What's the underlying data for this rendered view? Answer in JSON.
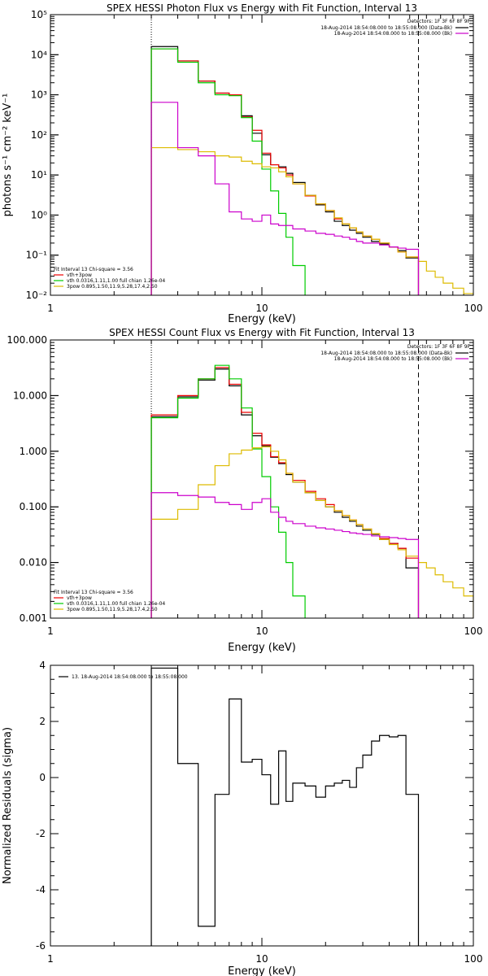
{
  "chart_data": [
    {
      "type": "line",
      "title": "SPEX HESSI Photon Flux vs Energy with Fit Function, Interval 13",
      "xlabel": "Energy (keV)",
      "ylabel": "photons s⁻¹ cm⁻² keV⁻¹",
      "xscale": "log",
      "yscale": "log",
      "xlim": [
        1,
        100
      ],
      "ylim": [
        0.01,
        100000
      ],
      "xticks": [
        "1",
        "10",
        "100"
      ],
      "yticks": [
        "10⁻²",
        "10⁻¹",
        "10⁰",
        "10¹",
        "10²",
        "10³",
        "10⁴",
        "10⁵"
      ],
      "legend_topright": {
        "detectors": "Detectors: 1F 3F 6F 8F 9F",
        "lines": [
          {
            "text": "18-Aug-2014 18:54:08.000 to 18:55:08.000 (Data-Bk)",
            "color": "#000000"
          },
          {
            "text": "18-Aug-2014 18:54:08.000 to 18:55:08.000 (Bk)",
            "color": "#cc00cc"
          }
        ]
      },
      "legend_bottomleft": {
        "header": "Fit Interval 13   Chi-square = 3.56",
        "entries": [
          {
            "text": "vth+3pow",
            "color": "#ee0000"
          },
          {
            "text": "vth 0.0316,1.11,1.00  full chian 1.26e-04",
            "color": "#00cc00"
          },
          {
            "text": "3pow 0.895,1.50,11.9,5.28,17.4,2.50",
            "color": "#ddbb00"
          }
        ]
      },
      "vlines": [
        {
          "x": 3,
          "style": "dotted"
        },
        {
          "x": 55,
          "style": "dashed"
        }
      ],
      "series": [
        {
          "color": "#000000",
          "edges": [
            3,
            4,
            5,
            6,
            7,
            8,
            9,
            10,
            11,
            12,
            13,
            14,
            16,
            18,
            20,
            22,
            24,
            26,
            28,
            30,
            33,
            36,
            40,
            44,
            48,
            55
          ],
          "values": [
            16000,
            7000,
            2200,
            1100,
            1000,
            300,
            110,
            32,
            18,
            16,
            11,
            6.5,
            3.1,
            1.8,
            1.2,
            0.7,
            0.55,
            0.42,
            0.35,
            0.28,
            0.22,
            0.19,
            0.16,
            0.13,
            0.085
          ]
        },
        {
          "color": "#ee0000",
          "edges": [
            3,
            4,
            5,
            6,
            7,
            8,
            9,
            10,
            11,
            12,
            13,
            14,
            16,
            18,
            20,
            22,
            24,
            26,
            28,
            30,
            33,
            36,
            40,
            44,
            48,
            55
          ],
          "values": [
            14000,
            7000,
            2200,
            1100,
            1000,
            280,
            130,
            35,
            18,
            15,
            10,
            6,
            3,
            1.9,
            1.3,
            0.8,
            0.6,
            0.48,
            0.38,
            0.3,
            0.25,
            0.2,
            0.16,
            0.12,
            0.09
          ]
        },
        {
          "color": "#00cc00",
          "edges": [
            3,
            4,
            5,
            6,
            7,
            8,
            9,
            10,
            11,
            12,
            13,
            14,
            16
          ],
          "values": [
            14000,
            6500,
            2000,
            1000,
            950,
            270,
            70,
            14,
            4,
            1.1,
            0.28,
            0.055
          ]
        },
        {
          "color": "#ddbb00",
          "edges": [
            3,
            4,
            5,
            6,
            7,
            8,
            9,
            10,
            11,
            12,
            13,
            14,
            16,
            18,
            20,
            22,
            24,
            26,
            28,
            30,
            33,
            36,
            40,
            44,
            48,
            55,
            60,
            66,
            72,
            80,
            90,
            100
          ],
          "values": [
            48,
            43,
            38,
            30,
            28,
            22,
            19,
            16,
            15,
            12,
            9,
            6,
            3.1,
            1.9,
            1.3,
            0.85,
            0.6,
            0.48,
            0.38,
            0.3,
            0.25,
            0.2,
            0.16,
            0.12,
            0.09,
            0.07,
            0.04,
            0.028,
            0.02,
            0.015,
            0.011
          ]
        },
        {
          "color": "#cc00cc",
          "edges": [
            3,
            4,
            5,
            6,
            7,
            8,
            9,
            10,
            11,
            12,
            13,
            14,
            16,
            18,
            20,
            22,
            24,
            26,
            28,
            30,
            33,
            36,
            40,
            44,
            48,
            55
          ],
          "values": [
            650,
            48,
            30,
            6,
            1.2,
            0.8,
            0.7,
            1.0,
            0.6,
            0.55,
            0.55,
            0.45,
            0.4,
            0.35,
            0.33,
            0.3,
            0.28,
            0.25,
            0.22,
            0.2,
            0.2,
            0.18,
            0.16,
            0.15,
            0.14
          ]
        }
      ]
    },
    {
      "type": "line",
      "title": "SPEX HESSI Count Flux vs Energy with Fit Function, Interval 13",
      "xlabel": "Energy (keV)",
      "ylabel": "",
      "xscale": "log",
      "yscale": "log",
      "xlim": [
        1,
        100
      ],
      "ylim": [
        0.001,
        100
      ],
      "xticks": [
        "1",
        "10",
        "100"
      ],
      "yticks": [
        "0.001",
        "0.010",
        "0.100",
        "1.000",
        "10.000",
        "100.000"
      ],
      "legend_topright": {
        "detectors": "Detectors: 1F 3F 6F 8F 9F",
        "lines": [
          {
            "text": "18-Aug-2014 18:54:08.000 to 18:55:08.000 (Data-Bk)",
            "color": "#000000"
          },
          {
            "text": "18-Aug-2014 18:54:08.000 to 18:55:08.000 (Bk)",
            "color": "#cc00cc"
          }
        ]
      },
      "legend_bottomleft": {
        "header": "Fit Interval 13   Chi-square = 3.56",
        "entries": [
          {
            "text": "vth+3pow",
            "color": "#ee0000"
          },
          {
            "text": "vth 0.0316,1.11,1.00  full chian 1.26e-04",
            "color": "#00cc00"
          },
          {
            "text": "3pow 0.895,1.50,11.9,5.28,17.4,2.50",
            "color": "#ddbb00"
          }
        ]
      },
      "vlines": [
        {
          "x": 3,
          "style": "dotted"
        },
        {
          "x": 55,
          "style": "dashed"
        }
      ],
      "series": [
        {
          "color": "#000000",
          "edges": [
            3,
            4,
            5,
            6,
            7,
            8,
            9,
            10,
            11,
            12,
            13,
            14,
            16,
            18,
            20,
            22,
            24,
            26,
            28,
            30,
            33,
            36,
            40,
            44,
            48,
            55
          ],
          "values": [
            4.2,
            9.5,
            19,
            30,
            15,
            4.5,
            1.9,
            1.25,
            0.78,
            0.6,
            0.38,
            0.28,
            0.18,
            0.13,
            0.1,
            0.08,
            0.065,
            0.055,
            0.045,
            0.038,
            0.032,
            0.026,
            0.022,
            0.018,
            0.008
          ]
        },
        {
          "color": "#ee0000",
          "edges": [
            3,
            4,
            5,
            6,
            7,
            8,
            9,
            10,
            11,
            12,
            13,
            14,
            16,
            18,
            20,
            22,
            24,
            26,
            28,
            30,
            33,
            36,
            40,
            44,
            48,
            55
          ],
          "values": [
            4.5,
            10,
            20,
            32,
            16,
            5,
            2.1,
            1.3,
            0.8,
            0.62,
            0.4,
            0.3,
            0.19,
            0.14,
            0.11,
            0.085,
            0.07,
            0.058,
            0.048,
            0.04,
            0.033,
            0.027,
            0.022,
            0.018,
            0.012
          ]
        },
        {
          "color": "#00cc00",
          "edges": [
            3,
            4,
            5,
            6,
            7,
            8,
            9,
            10,
            11,
            12,
            13,
            14,
            16
          ],
          "values": [
            4,
            9,
            20,
            35,
            20,
            6,
            1.1,
            0.35,
            0.1,
            0.035,
            0.01,
            0.0025
          ]
        },
        {
          "color": "#ddbb00",
          "edges": [
            3,
            4,
            5,
            6,
            7,
            8,
            9,
            10,
            11,
            12,
            13,
            14,
            16,
            18,
            20,
            22,
            24,
            26,
            28,
            30,
            33,
            36,
            40,
            44,
            48,
            55,
            60,
            66,
            72,
            80,
            90,
            100
          ],
          "values": [
            0.06,
            0.09,
            0.25,
            0.55,
            0.9,
            1.05,
            1.15,
            1.2,
            1.0,
            0.7,
            0.4,
            0.28,
            0.18,
            0.13,
            0.1,
            0.085,
            0.07,
            0.058,
            0.048,
            0.04,
            0.033,
            0.026,
            0.021,
            0.017,
            0.013,
            0.01,
            0.008,
            0.006,
            0.0045,
            0.0035,
            0.0025
          ]
        },
        {
          "color": "#cc00cc",
          "edges": [
            3,
            4,
            5,
            6,
            7,
            8,
            9,
            10,
            11,
            12,
            13,
            14,
            16,
            18,
            20,
            22,
            24,
            26,
            28,
            30,
            33,
            36,
            40,
            44,
            48,
            55
          ],
          "values": [
            0.18,
            0.16,
            0.15,
            0.12,
            0.11,
            0.09,
            0.12,
            0.14,
            0.08,
            0.065,
            0.055,
            0.05,
            0.045,
            0.042,
            0.04,
            0.038,
            0.036,
            0.034,
            0.033,
            0.032,
            0.03,
            0.029,
            0.028,
            0.027,
            0.026
          ]
        }
      ]
    },
    {
      "type": "line",
      "title": "",
      "xlabel": "Energy (keV)",
      "ylabel": "Normalized Residuals (sigma)",
      "xscale": "log",
      "yscale": "linear",
      "xlim": [
        1,
        100
      ],
      "ylim": [
        -6,
        4
      ],
      "xticks": [
        "1",
        "10",
        "100"
      ],
      "yticks": [
        "-6",
        "-4",
        "-2",
        "0",
        "2",
        "4"
      ],
      "legend": "13. 18-Aug-2014 18:54:08.000 to 18:55:08.000",
      "series": [
        {
          "color": "#000000",
          "edges": [
            3,
            4,
            5,
            6,
            7,
            8,
            9,
            10,
            11,
            12,
            13,
            14,
            16,
            18,
            20,
            22,
            24,
            26,
            28,
            30,
            33,
            36,
            40,
            44,
            48,
            55
          ],
          "values": [
            3.9,
            0.5,
            -5.3,
            -0.6,
            2.8,
            0.55,
            0.65,
            0.1,
            -0.95,
            0.95,
            -0.85,
            -0.2,
            -0.3,
            -0.7,
            -0.3,
            -0.2,
            -0.1,
            -0.35,
            0.35,
            0.8,
            1.3,
            1.5,
            1.45,
            1.5,
            -0.6
          ]
        }
      ]
    }
  ]
}
